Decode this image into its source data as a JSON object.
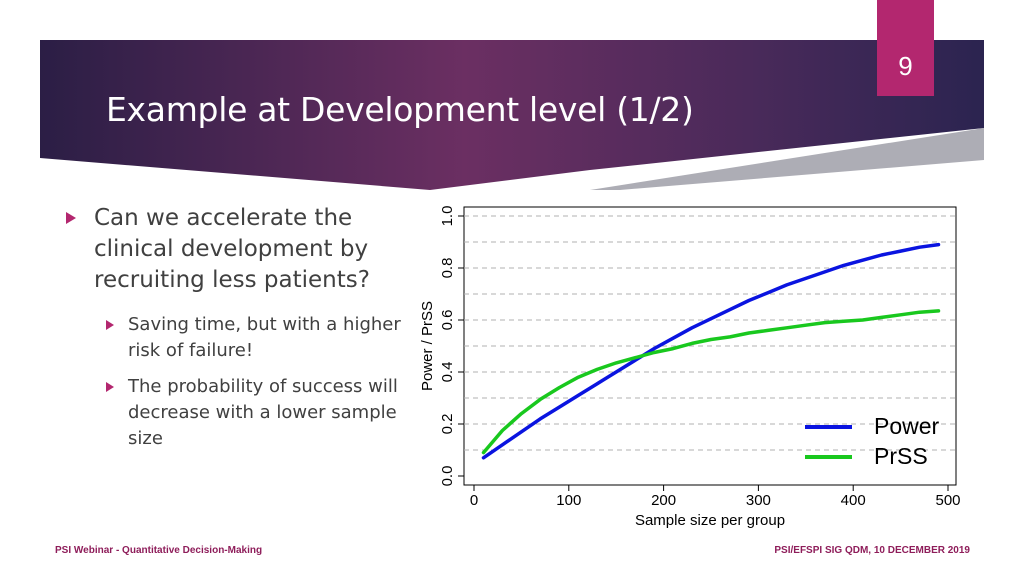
{
  "slide": {
    "page_number": "9",
    "title": "Example at Development level (1/2)",
    "colors": {
      "accent": "#b3276f",
      "band_dark": "#2b1e45",
      "band_mid": "#6b2f62",
      "text": "#404040",
      "footer": "#8e1d5a"
    },
    "bullets": {
      "main": "Can we accelerate the clinical development by recruiting less patients?",
      "sub": [
        "Saving time, but with a higher risk of failure!",
        "The probability of success will decrease with a lower sample size"
      ]
    },
    "footer": {
      "left": "PSI Webinar - Quantitative Decision-Making",
      "right": "PSI/EFSPI SIG QDM, 10 DECEMBER 2019"
    }
  },
  "chart_data": {
    "type": "line",
    "xlabel": "Sample size per group",
    "ylabel": "Power / PrSS",
    "xlim": [
      0,
      500
    ],
    "ylim": [
      0,
      1
    ],
    "xticks": [
      "0",
      "100",
      "200",
      "300",
      "400",
      "500"
    ],
    "yticks": [
      "0.0",
      "0.2",
      "0.4",
      "0.6",
      "0.8",
      "1.0"
    ],
    "grid": "horizontal dashed",
    "legend_position": "bottom-right",
    "x": [
      10,
      30,
      50,
      70,
      90,
      110,
      130,
      150,
      170,
      190,
      210,
      230,
      250,
      270,
      290,
      310,
      330,
      350,
      370,
      390,
      410,
      430,
      450,
      470,
      490
    ],
    "series": [
      {
        "name": "Power",
        "color": "#0a14e0",
        "values": [
          0.07,
          0.12,
          0.17,
          0.22,
          0.265,
          0.31,
          0.355,
          0.4,
          0.445,
          0.49,
          0.53,
          0.57,
          0.605,
          0.64,
          0.675,
          0.705,
          0.735,
          0.76,
          0.785,
          0.81,
          0.83,
          0.85,
          0.865,
          0.88,
          0.89
        ]
      },
      {
        "name": "PrSS",
        "color": "#19c81e",
        "values": [
          0.09,
          0.175,
          0.24,
          0.295,
          0.34,
          0.38,
          0.41,
          0.435,
          0.455,
          0.475,
          0.49,
          0.51,
          0.525,
          0.535,
          0.55,
          0.56,
          0.57,
          0.58,
          0.59,
          0.595,
          0.6,
          0.61,
          0.62,
          0.63,
          0.635
        ]
      }
    ]
  }
}
